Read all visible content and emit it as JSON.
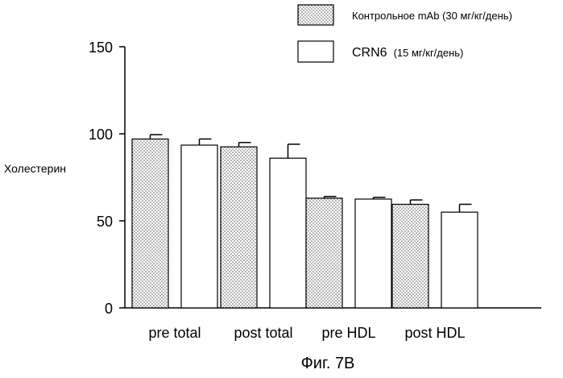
{
  "chart_data": {
    "type": "bar",
    "categories": [
      "pre total",
      "post total",
      "pre HDL",
      "post HDL"
    ],
    "ylabel": "Холестерин",
    "ylim": [
      0,
      150
    ],
    "yticks": [
      0,
      50,
      100,
      150
    ],
    "grid": false,
    "legend_position": "top-right",
    "series": [
      {
        "name": "Контрольное mAb",
        "dose": "(30 мг/кг/день)",
        "fill": "dotted",
        "values": [
          97,
          92.5,
          63,
          59.5
        ],
        "errors": [
          2.5,
          2.5,
          1,
          2.5
        ]
      },
      {
        "name": "CRN6",
        "dose": "(15 мг/кг/день)",
        "fill": "white",
        "values": [
          93.5,
          86,
          62.5,
          55
        ],
        "errors": [
          3.5,
          8,
          1,
          4.5
        ]
      }
    ]
  },
  "caption": "Фиг. 7В",
  "colors": {
    "stroke": "#000000",
    "dots": "#555555",
    "background": "#ffffff"
  }
}
